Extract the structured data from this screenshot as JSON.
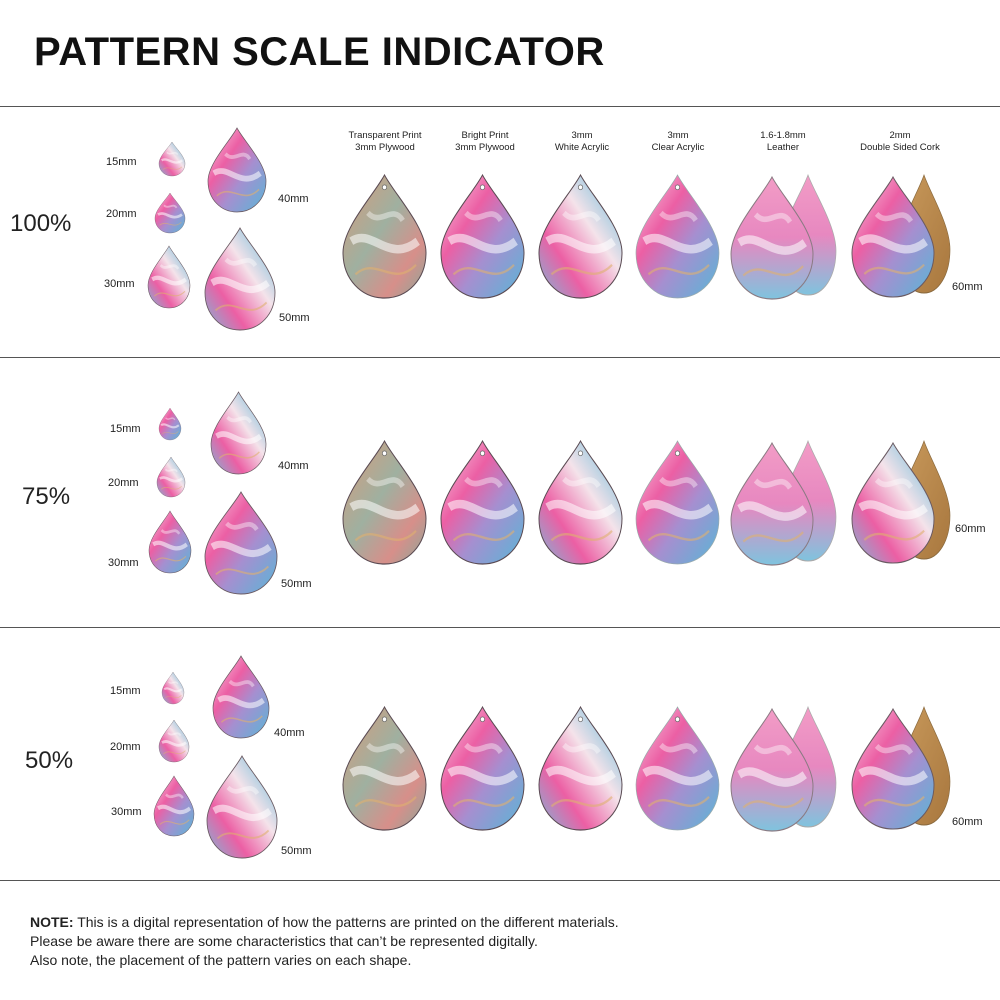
{
  "header": {
    "title": "PATTERN SCALE INDICATOR"
  },
  "columns": [
    {
      "line1": "Transparent Print",
      "line2": "3mm Plywood"
    },
    {
      "line1": "Bright Print",
      "line2": "3mm Plywood"
    },
    {
      "line1": "3mm",
      "line2": "White Acrylic"
    },
    {
      "line1": "3mm",
      "line2": "Clear Acrylic"
    },
    {
      "line1": "1.6-1.8mm",
      "line2": "Leather"
    },
    {
      "line1": "2mm",
      "line2": "Double Sided Cork"
    }
  ],
  "sections": [
    {
      "scale": "100%",
      "sizes": [
        "15mm",
        "20mm",
        "30mm",
        "40mm",
        "50mm"
      ],
      "product_size": "60mm"
    },
    {
      "scale": "75%",
      "sizes": [
        "15mm",
        "20mm",
        "30mm",
        "40mm",
        "50mm"
      ],
      "product_size": "60mm"
    },
    {
      "scale": "50%",
      "sizes": [
        "15mm",
        "20mm",
        "30mm",
        "40mm",
        "50mm"
      ],
      "product_size": "60mm"
    }
  ],
  "note": {
    "label": "NOTE:",
    "line1": "This is a digital representation of how the patterns are printed on the different materials.",
    "line2": "Please be aware there are some characteristics that can’t be represented digitally.",
    "line3": "Also note, the placement of the pattern varies on each shape."
  },
  "icons": [
    "teardrop-earring-icon",
    "leather-backing-icon",
    "cork-backing-icon"
  ],
  "colors": {
    "pink": "#ec5fa4",
    "blue": "#58b6d6",
    "cream": "#f6ead8",
    "gold": "#d9a962",
    "leather_grey": "#c9ccc8",
    "cork": "#b88b4e"
  }
}
